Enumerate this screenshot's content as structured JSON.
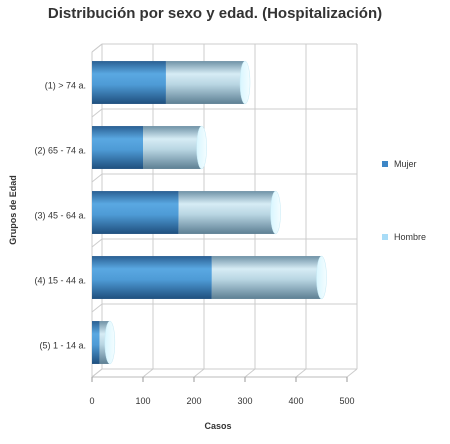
{
  "chart_data": {
    "type": "bar",
    "orientation": "horizontal",
    "stacked": true,
    "title": "Distribución por sexo y edad. (Hospitalización)",
    "xlabel": "Casos",
    "ylabel": "Grupos de Edad",
    "xlim": [
      0,
      500
    ],
    "xticks": [
      0,
      100,
      200,
      300,
      400,
      500
    ],
    "grid": true,
    "legend_position": "right",
    "categories": [
      "(1) > 74 a.",
      "(2) 65 - 74 a.",
      "(3) 45 - 64 a.",
      "(4) 15 - 44 a.",
      "(5) 1 - 14 a."
    ],
    "series": [
      {
        "name": "Mujer",
        "values": [
          145,
          100,
          170,
          235,
          15
        ],
        "color": "#3d86c6"
      },
      {
        "name": "Hombre",
        "values": [
          155,
          115,
          190,
          215,
          20
        ],
        "color": "#a8dcf7"
      }
    ]
  }
}
